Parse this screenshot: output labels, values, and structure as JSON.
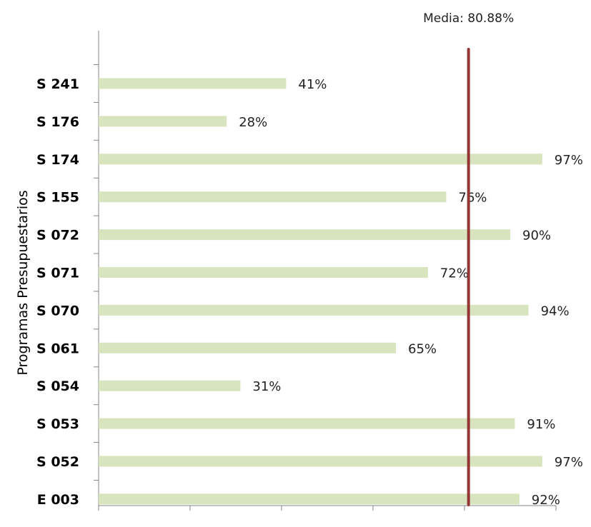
{
  "chart_data": {
    "type": "bar",
    "orientation": "horizontal",
    "ylabel": "Programas Presupuestarios",
    "categories": [
      "S 241",
      "S 176",
      "S 174",
      "S 155",
      "S 072",
      "S 071",
      "S 070",
      "S 061",
      "S 054",
      "S 053",
      "S 052",
      "E 003"
    ],
    "values": [
      41,
      28,
      97,
      76,
      90,
      72,
      94,
      65,
      31,
      91,
      97,
      92
    ],
    "value_labels": [
      "41%",
      "28%",
      "97%",
      "76%",
      "90%",
      "72%",
      "94%",
      "65%",
      "31%",
      "91%",
      "97%",
      "92%"
    ],
    "xlim": [
      0,
      100
    ],
    "bar_color": "#d7e4bd",
    "reference_line": {
      "value": 80.88,
      "label": "Media: 80.88%",
      "color": "#943634"
    },
    "grid": false,
    "legend": "none"
  }
}
